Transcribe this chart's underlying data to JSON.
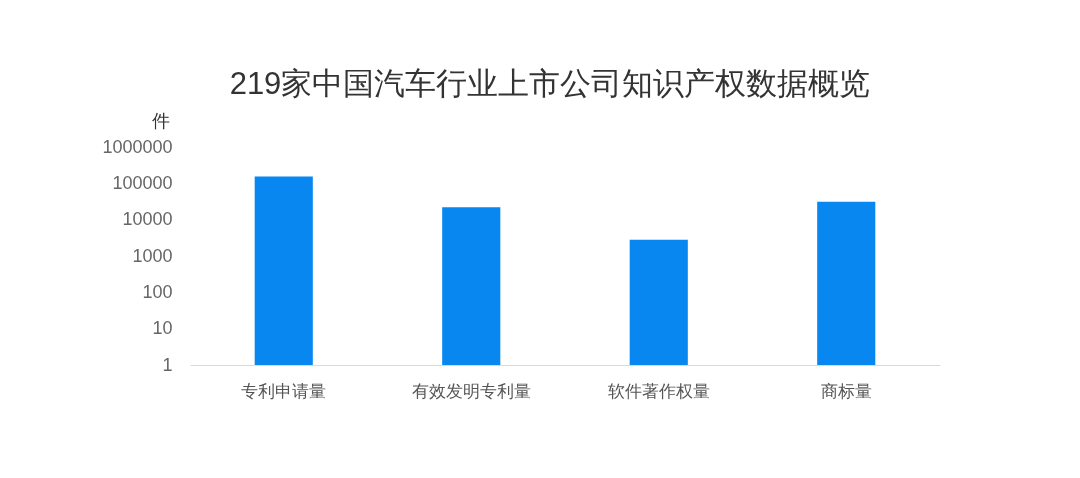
{
  "chart_data": {
    "type": "bar",
    "title": "219家中国汽车行业上市公司知识产权数据概览",
    "ylabel": "件",
    "categories": [
      "专利申请量",
      "有效发明专利量",
      "软件著作权量",
      "商标量"
    ],
    "values": [
      155000,
      22000,
      2800,
      31000
    ],
    "color": "#0787ef",
    "log": true,
    "ylim": [
      1,
      1000000
    ],
    "yticks": [
      1,
      10,
      100,
      1000,
      10000,
      100000,
      1000000
    ],
    "grid": false
  }
}
